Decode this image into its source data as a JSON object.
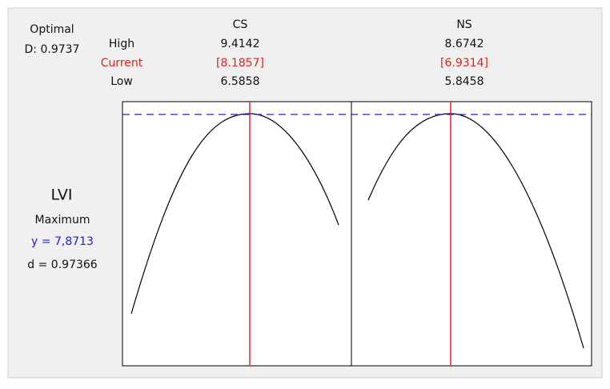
{
  "optimal": {
    "label": "Optimal",
    "D": "D: 0.9737"
  },
  "row_labels": {
    "high": "High",
    "current": "Current",
    "low": "Low"
  },
  "factors": [
    {
      "name": "CS",
      "high": "9.4142",
      "current": "[8.1857]",
      "low": "6.5858"
    },
    {
      "name": "NS",
      "high": "8.6742",
      "current": "[6.9314]",
      "low": "5.8458"
    }
  ],
  "response": {
    "name": "LVI",
    "goal": "Maximum",
    "y": "y = 7,8713",
    "d": "d = 0.97366"
  }
}
